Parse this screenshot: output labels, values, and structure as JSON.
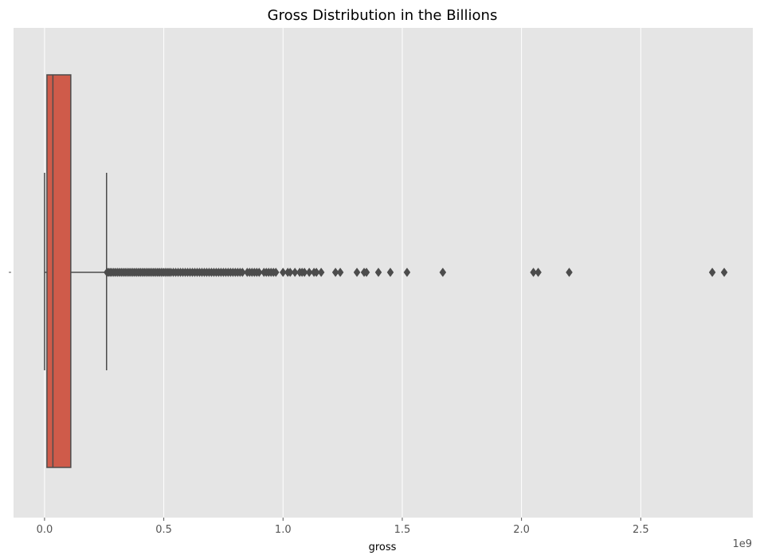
{
  "chart_data": {
    "type": "box",
    "orientation": "horizontal",
    "title": "Gross Distribution in the Billions",
    "xlabel": "gross",
    "ylabel": "",
    "x_offset_label": "1e9",
    "xlim": [
      -0.13,
      2.97
    ],
    "x_ticks": [
      0.0,
      0.5,
      1.0,
      1.5,
      2.0,
      2.5
    ],
    "x_tick_labels": [
      "0.0",
      "0.5",
      "1.0",
      "1.5",
      "2.0",
      "2.5"
    ],
    "grid": true,
    "box": {
      "whisker_low": 0.0,
      "q1": 0.01,
      "median": 0.035,
      "q3": 0.11,
      "whisker_high": 0.26
    },
    "outliers": [
      0.262,
      0.268,
      0.275,
      0.282,
      0.29,
      0.298,
      0.306,
      0.314,
      0.322,
      0.33,
      0.338,
      0.346,
      0.354,
      0.362,
      0.37,
      0.378,
      0.386,
      0.394,
      0.402,
      0.41,
      0.418,
      0.426,
      0.434,
      0.442,
      0.45,
      0.458,
      0.466,
      0.474,
      0.482,
      0.49,
      0.498,
      0.506,
      0.514,
      0.522,
      0.53,
      0.54,
      0.55,
      0.56,
      0.57,
      0.58,
      0.59,
      0.6,
      0.61,
      0.62,
      0.63,
      0.64,
      0.65,
      0.66,
      0.67,
      0.68,
      0.69,
      0.7,
      0.71,
      0.72,
      0.73,
      0.74,
      0.75,
      0.76,
      0.77,
      0.78,
      0.79,
      0.8,
      0.81,
      0.82,
      0.83,
      0.85,
      0.86,
      0.87,
      0.88,
      0.89,
      0.9,
      0.92,
      0.93,
      0.94,
      0.95,
      0.96,
      0.97,
      1.0,
      1.02,
      1.03,
      1.05,
      1.07,
      1.08,
      1.09,
      1.11,
      1.13,
      1.14,
      1.16,
      1.22,
      1.24,
      1.31,
      1.34,
      1.35,
      1.4,
      1.45,
      1.52,
      1.67,
      2.05,
      2.07,
      2.2,
      2.8,
      2.85
    ],
    "colors": {
      "box_fill": "#cf5b4a",
      "line": "#4c4c4c",
      "plot_background": "#e5e5e5",
      "grid": "#ffffff",
      "outlier": "#4c4c4c"
    }
  }
}
